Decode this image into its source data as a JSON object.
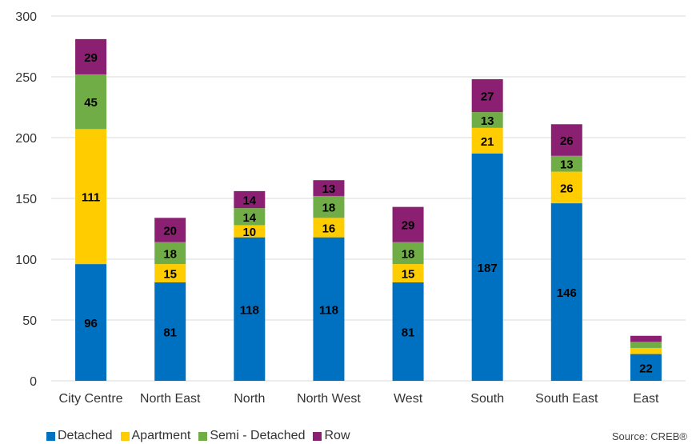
{
  "chart_data": {
    "type": "bar",
    "stacked": true,
    "title": "",
    "xlabel": "",
    "ylabel": "",
    "categories": [
      "City Centre",
      "North East",
      "North",
      "North West",
      "West",
      "South",
      "South East",
      "East"
    ],
    "series": [
      {
        "name": "Detached",
        "color": "#0070C0",
        "values": [
          96,
          81,
          118,
          118,
          81,
          187,
          146,
          22
        ]
      },
      {
        "name": "Apartment",
        "color": "#FFCC00",
        "values": [
          111,
          15,
          10,
          16,
          15,
          21,
          26,
          5
        ]
      },
      {
        "name": "Semi - Detached",
        "color": "#70AD47",
        "values": [
          45,
          18,
          14,
          18,
          18,
          13,
          13,
          5
        ]
      },
      {
        "name": "Row",
        "color": "#8B2072",
        "values": [
          29,
          20,
          14,
          13,
          29,
          27,
          26,
          5
        ]
      }
    ],
    "data_labels": [
      [
        "96",
        "81",
        "118",
        "118",
        "81",
        "187",
        "146",
        "22"
      ],
      [
        "111",
        "15",
        "10",
        "16",
        "15",
        "21",
        "26",
        ""
      ],
      [
        "45",
        "18",
        "14",
        "18",
        "18",
        "13",
        "13",
        ""
      ],
      [
        "29",
        "20",
        "14",
        "13",
        "29",
        "27",
        "26",
        ""
      ]
    ],
    "ylim": [
      0,
      300
    ],
    "yticks": [
      0,
      50,
      100,
      150,
      200,
      250,
      300
    ],
    "grid": true,
    "legend_position": "bottom-left"
  },
  "source": "Source: CREB®"
}
